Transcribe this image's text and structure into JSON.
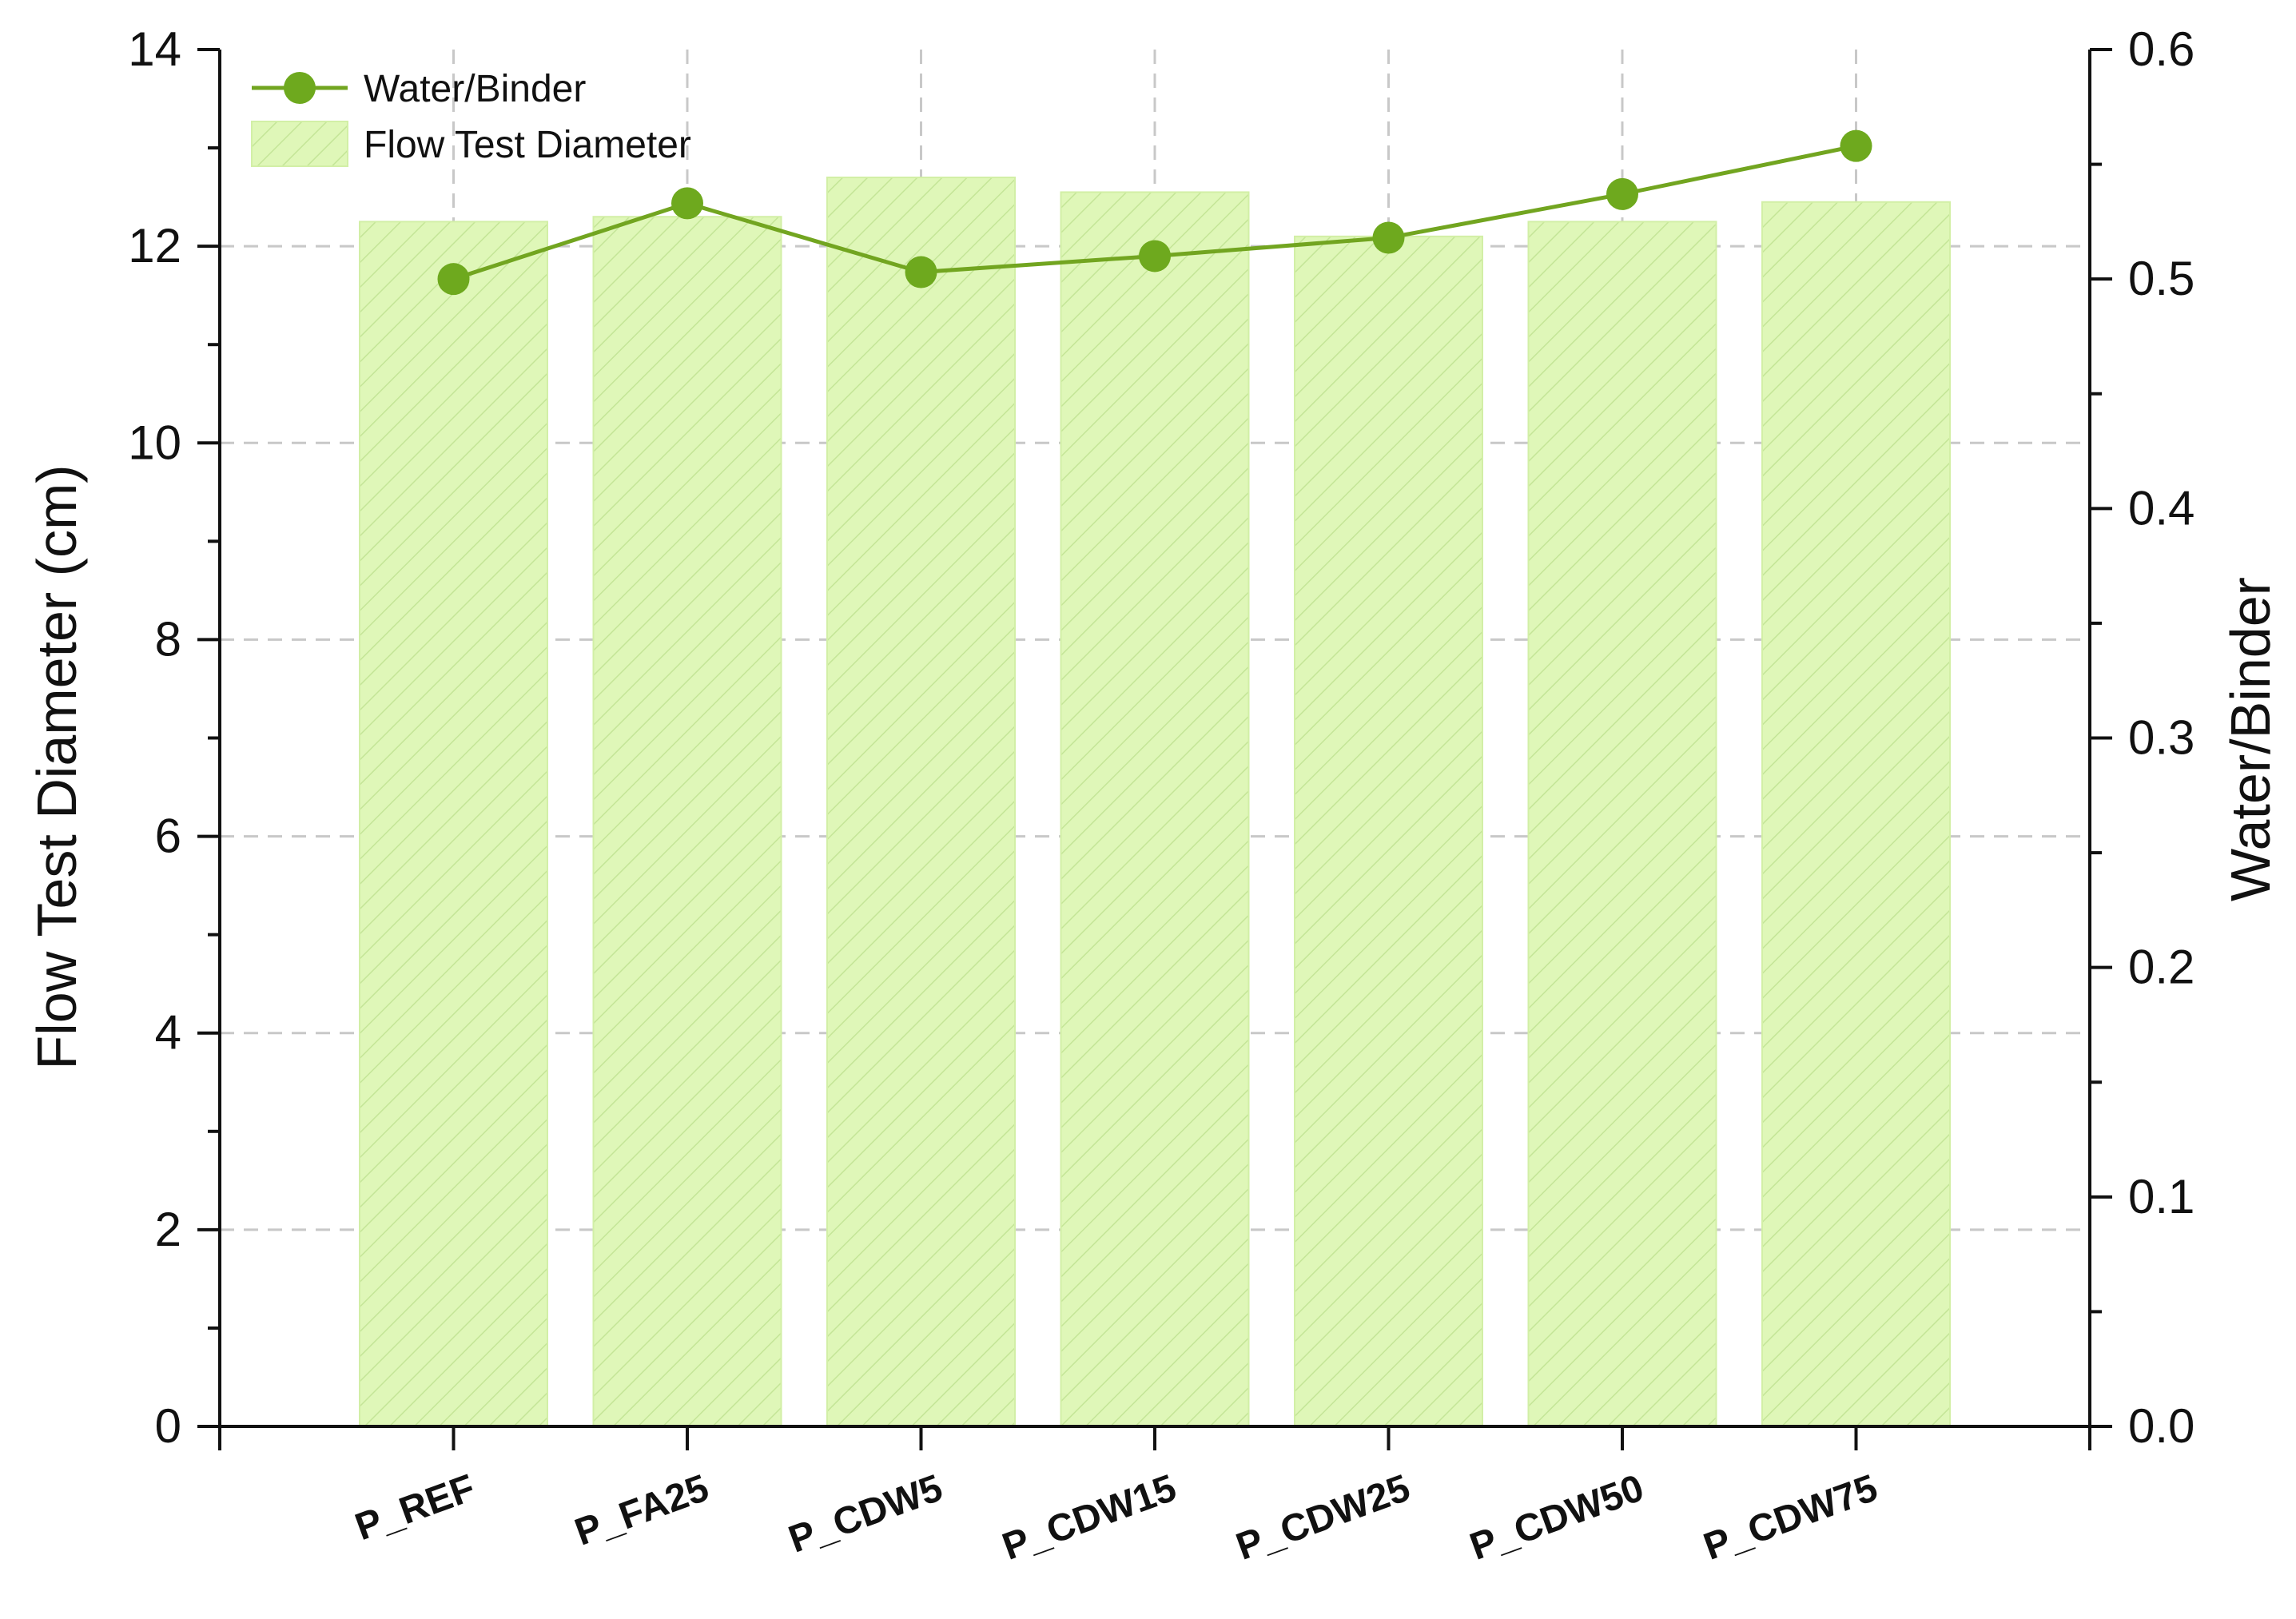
{
  "chart_data": {
    "type": "bar",
    "categories": [
      "P_REF",
      "P_FA25",
      "P_CDW5",
      "P_CDW15",
      "P_CDW25",
      "P_CDW50",
      "P_CDW75"
    ],
    "series": [
      {
        "name": "Flow Test Diameter",
        "type": "bar",
        "axis": "left",
        "values": [
          12.25,
          12.3,
          12.7,
          12.55,
          12.1,
          12.25,
          12.45
        ]
      },
      {
        "name": "Water/Binder",
        "type": "line",
        "axis": "right",
        "values": [
          0.5,
          0.533,
          0.503,
          0.51,
          0.518,
          0.537,
          0.558
        ]
      }
    ],
    "ylabel": "Flow Test Diameter (cm)",
    "y2label": "Water/Binder",
    "ylim": [
      0,
      14
    ],
    "y2lim": [
      0,
      0.6
    ],
    "yticks": [
      "0",
      "2",
      "4",
      "6",
      "8",
      "10",
      "12",
      "14"
    ],
    "y2ticks": [
      "0.0",
      "0.1",
      "0.2",
      "0.3",
      "0.4",
      "0.5",
      "0.6"
    ],
    "grid": true,
    "legend_position": "top-left",
    "colors": {
      "bar_fill": "#dff7b8",
      "bar_hatch": "#c4e597",
      "line": "#72a520",
      "marker": "#6ea91e"
    }
  }
}
